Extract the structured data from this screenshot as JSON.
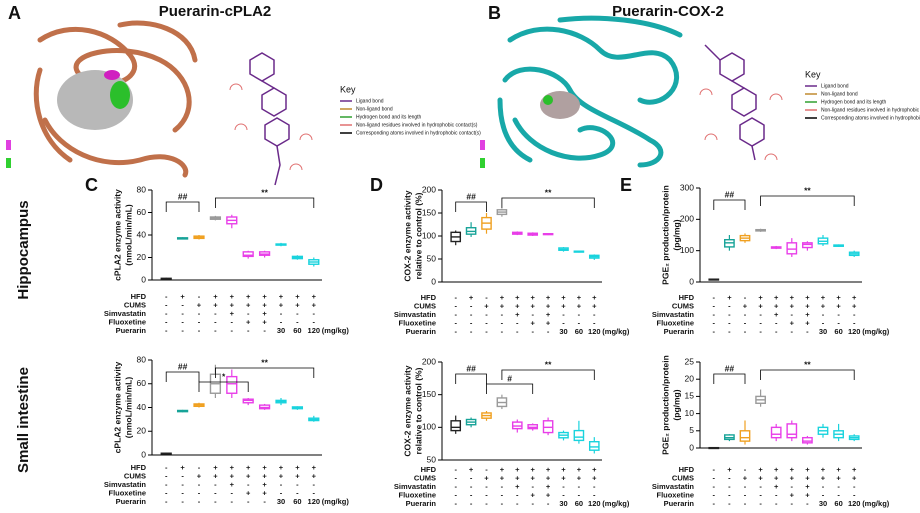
{
  "panel_a": {
    "letter": "A",
    "title": "Puerarin-cPLA2",
    "key_title": "Key",
    "key_items": [
      "Ligand bond",
      "Non-ligand bond",
      "Hydrogen bond and its length",
      "Non-ligand residues involved in hydrophobic contact(s)",
      "Corresponding atoms involved in hydrophobic contact(s)"
    ]
  },
  "panel_b": {
    "letter": "B",
    "title": "Puerarin-COX-2",
    "key_title": "Key",
    "key_items": [
      "Ligand bond",
      "Non-ligand bond",
      "Hydrogen bond and its length",
      "Non-ligand residues involved in hydrophobic contact(s)",
      "Corresponding atoms involved in hydrophobic contact(s)"
    ]
  },
  "panel_letters": [
    "C",
    "D",
    "E"
  ],
  "row_labels": [
    "Hippocampus",
    "Small intestine"
  ],
  "group_colors": [
    "#222222",
    "#17a398",
    "#f0a020",
    "#9a9a9a",
    "#e83ee8",
    "#e83ee8",
    "#e83ee8",
    "#19d3dd",
    "#19d3dd",
    "#19d3dd"
  ],
  "group_table": {
    "rows": [
      {
        "label": "HFD",
        "cells": [
          "-",
          "+",
          "-",
          "+",
          "+",
          "+",
          "+",
          "+",
          "+",
          "+"
        ]
      },
      {
        "label": "CUMS",
        "cells": [
          "-",
          "-",
          "+",
          "+",
          "+",
          "+",
          "+",
          "+",
          "+",
          "+"
        ]
      },
      {
        "label": "Simvastatin",
        "cells": [
          "-",
          "-",
          "-",
          "-",
          "+",
          "-",
          "+",
          "-",
          "-",
          "-"
        ]
      },
      {
        "label": "Fluoxetine",
        "cells": [
          "-",
          "-",
          "-",
          "-",
          "-",
          "+",
          "+",
          "-",
          "-",
          "-"
        ]
      },
      {
        "label": "Puerarin",
        "cells": [
          "-",
          "-",
          "-",
          "-",
          "-",
          "-",
          "-",
          "30",
          "60",
          "120"
        ]
      }
    ],
    "dose_unit": "(mg/kg)"
  },
  "chart_data": [
    {
      "type": "box",
      "y_label": [
        "cPLA2 enzyme activity",
        "(nmoL/min/mL)"
      ],
      "ylim": [
        0,
        80
      ],
      "yticks": [
        0,
        20,
        40,
        60,
        80
      ],
      "annotations": [
        "##",
        "**"
      ],
      "boxes": [
        [
          1,
          1,
          1,
          1.5,
          2
        ],
        [
          36,
          36.5,
          37,
          37.5,
          38
        ],
        [
          36,
          37,
          38,
          39,
          40
        ],
        [
          53,
          54,
          55,
          56,
          57
        ],
        [
          46,
          50,
          53,
          56,
          58
        ],
        [
          19,
          21,
          22,
          25,
          26
        ],
        [
          20,
          22,
          23,
          25,
          26
        ],
        [
          30,
          31,
          31.5,
          32,
          33
        ],
        [
          18,
          19,
          20,
          21,
          22
        ],
        [
          12,
          14,
          16,
          18,
          20
        ]
      ]
    },
    {
      "type": "box",
      "y_label": [
        "cPLA2 enzyme activity",
        "(nmoL/min/mL)"
      ],
      "ylim": [
        0,
        80
      ],
      "yticks": [
        0,
        20,
        40,
        60,
        80
      ],
      "annotations": [
        "##",
        "*",
        "**"
      ],
      "boxes": [
        [
          1,
          1,
          1,
          1.5,
          2
        ],
        [
          36,
          36.5,
          37,
          37.5,
          38
        ],
        [
          40,
          41,
          42,
          43,
          44
        ],
        [
          48,
          52,
          60,
          68,
          76
        ],
        [
          48,
          52,
          60,
          66,
          72
        ],
        [
          42,
          44,
          46,
          47,
          48
        ],
        [
          38,
          39,
          40,
          42,
          43
        ],
        [
          42,
          44,
          45,
          46,
          48
        ],
        [
          38,
          39,
          40,
          40.5,
          41
        ],
        [
          28,
          29,
          30,
          31,
          33
        ]
      ]
    },
    {
      "type": "box",
      "y_label": [
        "COX-2 enzyme activity",
        "relative to control (%)"
      ],
      "ylim": [
        0,
        200
      ],
      "yticks": [
        0,
        50,
        100,
        150,
        200
      ],
      "annotations": [
        "##",
        "**"
      ],
      "boxes": [
        [
          80,
          88,
          98,
          108,
          112
        ],
        [
          98,
          104,
          110,
          118,
          130
        ],
        [
          105,
          115,
          128,
          140,
          150
        ],
        [
          142,
          147,
          152,
          157,
          160
        ],
        [
          102,
          104,
          106,
          108,
          110
        ],
        [
          100,
          102,
          104,
          106,
          108
        ],
        [
          102,
          103,
          104,
          105,
          106
        ],
        [
          66,
          69,
          71,
          74,
          76
        ],
        [
          64,
          65,
          66,
          67,
          68
        ],
        [
          48,
          52,
          55,
          58,
          60
        ]
      ]
    },
    {
      "type": "box",
      "y_label": [
        "COX-2 enzyme activity",
        "relative to control (%)"
      ],
      "ylim": [
        50,
        200
      ],
      "yticks": [
        50,
        100,
        150,
        200
      ],
      "annotations": [
        "##",
        "#",
        "**"
      ],
      "boxes": [
        [
          90,
          95,
          100,
          110,
          118
        ],
        [
          100,
          104,
          108,
          112,
          115
        ],
        [
          110,
          114,
          118,
          122,
          125
        ],
        [
          128,
          132,
          138,
          145,
          150
        ],
        [
          92,
          98,
          102,
          108,
          112
        ],
        [
          95,
          98,
          100,
          104,
          106
        ],
        [
          88,
          92,
          100,
          110,
          115
        ],
        [
          80,
          84,
          88,
          92,
          95
        ],
        [
          75,
          80,
          85,
          95,
          110
        ],
        [
          60,
          65,
          70,
          78,
          85
        ]
      ]
    },
    {
      "type": "box",
      "y_label": [
        "PGE₂ production/protein",
        "(pg/mg)"
      ],
      "ylim": [
        0,
        300
      ],
      "yticks": [
        0,
        100,
        200,
        300
      ],
      "annotations": [
        "##",
        "**"
      ],
      "boxes": [
        [
          8,
          8,
          8,
          9,
          10
        ],
        [
          100,
          112,
          125,
          135,
          150
        ],
        [
          125,
          132,
          140,
          148,
          155
        ],
        [
          160,
          163,
          165,
          167,
          170
        ],
        [
          105,
          108,
          110,
          112,
          115
        ],
        [
          80,
          90,
          105,
          125,
          140
        ],
        [
          100,
          110,
          120,
          125,
          130
        ],
        [
          115,
          122,
          130,
          140,
          150
        ],
        [
          112,
          114,
          116,
          118,
          120
        ],
        [
          80,
          85,
          90,
          95,
          100
        ]
      ]
    },
    {
      "type": "box",
      "y_label": [
        "PGE₂ production/protein",
        "(pg/mg)"
      ],
      "ylim": [
        0,
        25
      ],
      "yticks": [
        0,
        5,
        10,
        15,
        20,
        25
      ],
      "annotations": [
        "##",
        "**"
      ],
      "boxes": [
        [
          0,
          0,
          0,
          0.1,
          0.2
        ],
        [
          2,
          2.5,
          3,
          3.8,
          4
        ],
        [
          1,
          2,
          3,
          5,
          8
        ],
        [
          12,
          13,
          14,
          15,
          17
        ],
        [
          2,
          3,
          4,
          6,
          7
        ],
        [
          2,
          3,
          4,
          7,
          8
        ],
        [
          1,
          1.5,
          2,
          3,
          3.5
        ],
        [
          3,
          4,
          5,
          6,
          7
        ],
        [
          2,
          3,
          4,
          5,
          7
        ],
        [
          2,
          2.5,
          3,
          3.5,
          4
        ]
      ]
    }
  ]
}
